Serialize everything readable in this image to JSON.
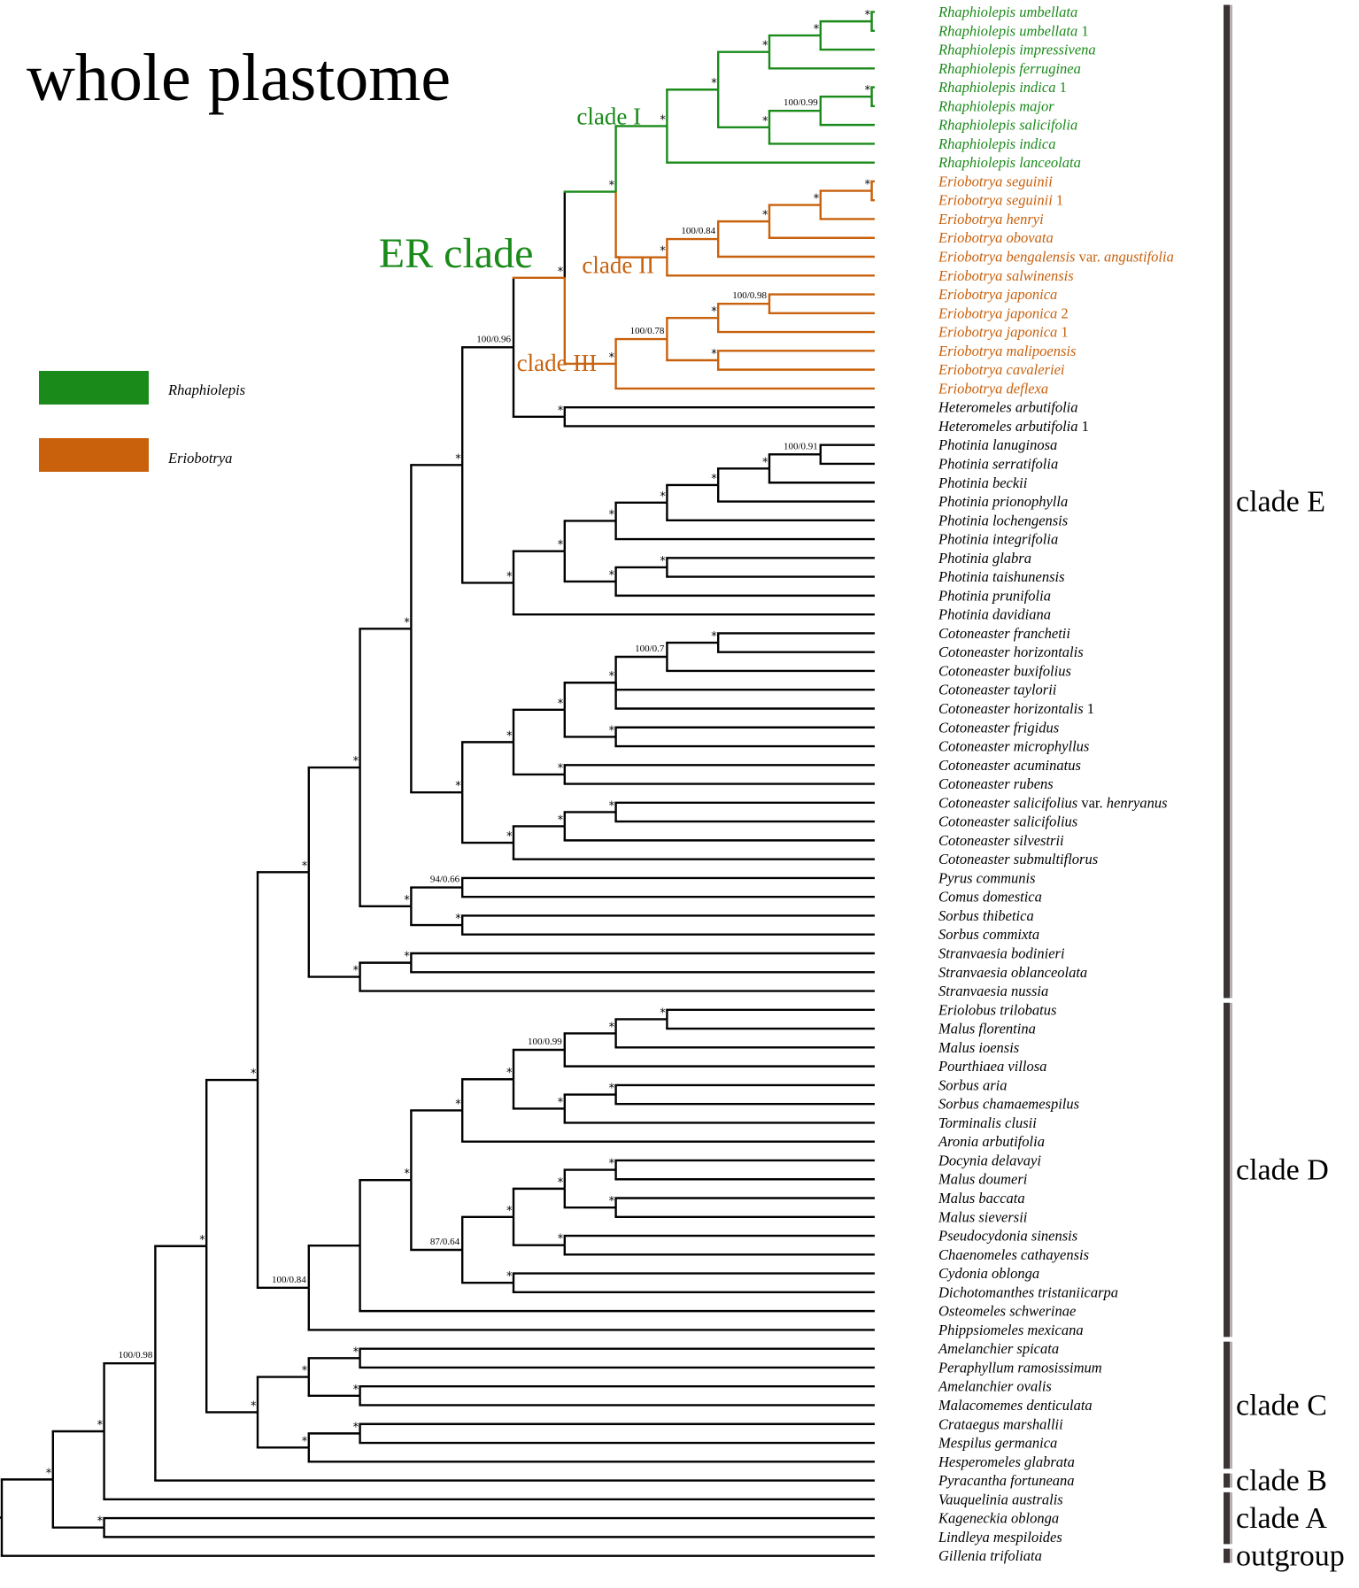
{
  "title": "whole plastome",
  "legend": [
    {
      "label": "Rhaphiolepis",
      "color": "#1a8a1a"
    },
    {
      "label": "Eriobotrya",
      "color": "#c8600c"
    }
  ],
  "colors": {
    "green": "#1a8a1a",
    "orange": "#c8600c",
    "black": "#000000"
  },
  "taxa": [
    {
      "id": "t1",
      "label": "Rhaphiolepis umbellata",
      "col": "g"
    },
    {
      "id": "t2",
      "label": "Rhaphiolepis umbellata",
      "suffix": " 1",
      "col": "g"
    },
    {
      "id": "t3",
      "label": "Rhaphiolepis impressivena",
      "col": "g"
    },
    {
      "id": "t4",
      "label": "Rhaphiolepis ferruginea",
      "col": "g"
    },
    {
      "id": "t5",
      "label": "Rhaphiolepis indica",
      "suffix": " 1",
      "col": "g"
    },
    {
      "id": "t6",
      "label": "Rhaphiolepis major",
      "col": "g"
    },
    {
      "id": "t7",
      "label": "Rhaphiolepis salicifolia",
      "col": "g"
    },
    {
      "id": "t8",
      "label": "Rhaphiolepis indica",
      "col": "g"
    },
    {
      "id": "t9",
      "label": "Rhaphiolepis lanceolata",
      "col": "g"
    },
    {
      "id": "t10",
      "label": "Eriobotrya seguinii",
      "col": "o"
    },
    {
      "id": "t11",
      "label": "Eriobotrya seguinii",
      "suffix": " 1",
      "col": "o"
    },
    {
      "id": "t12",
      "label": "Eriobotrya henryi",
      "col": "o"
    },
    {
      "id": "t13",
      "label": "Eriobotrya obovata",
      "col": "o"
    },
    {
      "id": "t14",
      "label": "Eriobotrya bengalensis",
      "mid": " var. ",
      "tail": "angustifolia",
      "col": "o"
    },
    {
      "id": "t15",
      "label": "Eriobotrya salwinensis",
      "col": "o"
    },
    {
      "id": "t16",
      "label": "Eriobotrya japonica",
      "col": "o"
    },
    {
      "id": "t17",
      "label": "Eriobotrya japonica",
      "suffix": " 2",
      "col": "o"
    },
    {
      "id": "t18",
      "label": "Eriobotrya japonica",
      "suffix": " 1",
      "col": "o"
    },
    {
      "id": "t19",
      "label": "Eriobotrya malipoensis",
      "col": "o"
    },
    {
      "id": "t20",
      "label": "Eriobotrya cavaleriei",
      "col": "o"
    },
    {
      "id": "t21",
      "label": "Eriobotrya deflexa",
      "col": "o"
    },
    {
      "id": "t22",
      "label": "Heteromeles arbutifolia",
      "col": "b"
    },
    {
      "id": "t23",
      "label": "Heteromeles arbutifolia",
      "suffix": " 1",
      "col": "b"
    },
    {
      "id": "t24",
      "label": "Photinia lanuginosa",
      "col": "b"
    },
    {
      "id": "t25",
      "label": "Photinia serratifolia",
      "col": "b"
    },
    {
      "id": "t26",
      "label": "Photinia beckii",
      "col": "b"
    },
    {
      "id": "t27",
      "label": "Photinia prionophylla",
      "col": "b"
    },
    {
      "id": "t28",
      "label": "Photinia lochengensis",
      "col": "b"
    },
    {
      "id": "t29",
      "label": "Photinia integrifolia",
      "col": "b"
    },
    {
      "id": "t30",
      "label": "Photinia glabra",
      "col": "b"
    },
    {
      "id": "t31",
      "label": "Photinia taishunensis",
      "col": "b"
    },
    {
      "id": "t32",
      "label": "Photinia prunifolia",
      "col": "b"
    },
    {
      "id": "t33",
      "label": "Photinia davidiana",
      "col": "b"
    },
    {
      "id": "t34",
      "label": "Cotoneaster franchetii",
      "col": "b"
    },
    {
      "id": "t35",
      "label": "Cotoneaster horizontalis",
      "col": "b"
    },
    {
      "id": "t36",
      "label": "Cotoneaster buxifolius",
      "col": "b"
    },
    {
      "id": "t37",
      "label": "Cotoneaster taylorii",
      "col": "b"
    },
    {
      "id": "t38",
      "label": "Cotoneaster horizontalis",
      "suffix": " 1",
      "col": "b"
    },
    {
      "id": "t39",
      "label": "Cotoneaster frigidus",
      "col": "b"
    },
    {
      "id": "t40",
      "label": "Cotoneaster microphyllus",
      "col": "b"
    },
    {
      "id": "t41",
      "label": "Cotoneaster acuminatus",
      "col": "b"
    },
    {
      "id": "t42",
      "label": "Cotoneaster rubens",
      "col": "b"
    },
    {
      "id": "t43",
      "label": "Cotoneaster salicifolius",
      "mid": " var. ",
      "tail": "henryanus",
      "col": "b"
    },
    {
      "id": "t44",
      "label": "Cotoneaster salicifolius",
      "col": "b"
    },
    {
      "id": "t45",
      "label": "Cotoneaster silvestrii",
      "col": "b"
    },
    {
      "id": "t46",
      "label": "Cotoneaster submultiflorus",
      "col": "b"
    },
    {
      "id": "t47",
      "label": "Pyrus communis",
      "col": "b"
    },
    {
      "id": "t48",
      "label": "Comus domestica",
      "col": "b"
    },
    {
      "id": "t49",
      "label": "Sorbus thibetica",
      "col": "b"
    },
    {
      "id": "t50",
      "label": "Sorbus commixta",
      "col": "b"
    },
    {
      "id": "t51",
      "label": "Stranvaesia bodinieri",
      "col": "b"
    },
    {
      "id": "t52",
      "label": "Stranvaesia oblanceolata",
      "col": "b"
    },
    {
      "id": "t53",
      "label": "Stranvaesia nussia",
      "col": "b"
    },
    {
      "id": "t54",
      "label": "Eriolobus trilobatus",
      "col": "b"
    },
    {
      "id": "t55",
      "label": "Malus florentina",
      "col": "b"
    },
    {
      "id": "t56",
      "label": "Malus ioensis",
      "col": "b"
    },
    {
      "id": "t57",
      "label": "Pourthiaea villosa",
      "col": "b"
    },
    {
      "id": "t58",
      "label": "Sorbus aria",
      "col": "b"
    },
    {
      "id": "t59",
      "label": "Sorbus chamaemespilus",
      "col": "b"
    },
    {
      "id": "t60",
      "label": "Torminalis clusii",
      "col": "b"
    },
    {
      "id": "t61",
      "label": "Aronia arbutifolia",
      "col": "b"
    },
    {
      "id": "t62",
      "label": "Docynia delavayi",
      "col": "b"
    },
    {
      "id": "t63",
      "label": "Malus doumeri",
      "col": "b"
    },
    {
      "id": "t64",
      "label": "Malus baccata",
      "col": "b"
    },
    {
      "id": "t65",
      "label": "Malus sieversii",
      "col": "b"
    },
    {
      "id": "t66",
      "label": "Pseudocydonia sinensis",
      "col": "b"
    },
    {
      "id": "t67",
      "label": "Chaenomeles cathayensis",
      "col": "b"
    },
    {
      "id": "t68",
      "label": "Cydonia oblonga",
      "col": "b"
    },
    {
      "id": "t69",
      "label": "Dichotomanthes tristaniicarpa",
      "col": "b"
    },
    {
      "id": "t70",
      "label": "Osteomeles schwerinae",
      "col": "b"
    },
    {
      "id": "t71",
      "label": "Phippsiomeles mexicana",
      "col": "b"
    },
    {
      "id": "t72",
      "label": "Amelanchier spicata",
      "col": "b"
    },
    {
      "id": "t73",
      "label": "Peraphyllum ramosissimum",
      "col": "b"
    },
    {
      "id": "t74",
      "label": "Amelanchier ovalis",
      "col": "b"
    },
    {
      "id": "t75",
      "label": "Malacomemes denticulata",
      "col": "b"
    },
    {
      "id": "t76",
      "label": "Crataegus marshallii",
      "col": "b"
    },
    {
      "id": "t77",
      "label": "Mespilus germanica",
      "col": "b"
    },
    {
      "id": "t78",
      "label": "Hesperomeles glabrata",
      "col": "b"
    },
    {
      "id": "t79",
      "label": "Pyracantha fortuneana",
      "col": "b"
    },
    {
      "id": "t80",
      "label": "Vauquelinia australis",
      "col": "b"
    },
    {
      "id": "t81",
      "label": "Kageneckia oblonga",
      "col": "b"
    },
    {
      "id": "t82",
      "label": "Lindleya mespiloides",
      "col": "b"
    },
    {
      "id": "t83",
      "label": "Gillenia trifoliata",
      "col": "b"
    }
  ],
  "nodes": [
    {
      "id": "n1",
      "ch": [
        "t1",
        "t2"
      ],
      "s": "*",
      "col": "g"
    },
    {
      "id": "n2",
      "ch": [
        "n1",
        "t3"
      ],
      "s": "*",
      "col": "g"
    },
    {
      "id": "n3",
      "ch": [
        "n2",
        "t4"
      ],
      "s": "*",
      "col": "g"
    },
    {
      "id": "n4",
      "ch": [
        "t5",
        "t6"
      ],
      "s": "*",
      "col": "g"
    },
    {
      "id": "n5",
      "ch": [
        "n4",
        "t7"
      ],
      "s": "100/0.99",
      "col": "g"
    },
    {
      "id": "n6",
      "ch": [
        "n5",
        "t8"
      ],
      "s": "*",
      "col": "g"
    },
    {
      "id": "n7",
      "ch": [
        "n3",
        "n6"
      ],
      "s": "*",
      "col": "g"
    },
    {
      "id": "n8",
      "ch": [
        "n7",
        "t9"
      ],
      "s": "*",
      "col": "g"
    },
    {
      "id": "n9",
      "ch": [
        "t10",
        "t11"
      ],
      "s": "*",
      "col": "o"
    },
    {
      "id": "n10",
      "ch": [
        "n9",
        "t12"
      ],
      "s": "*",
      "col": "o"
    },
    {
      "id": "n11",
      "ch": [
        "n10",
        "t13"
      ],
      "s": "*",
      "col": "o"
    },
    {
      "id": "n12",
      "ch": [
        "n11",
        "t14"
      ],
      "s": "100/0.84",
      "col": "o"
    },
    {
      "id": "n13",
      "ch": [
        "n12",
        "t15"
      ],
      "s": "*",
      "col": "o"
    },
    {
      "id": "n14",
      "ch": [
        "n8",
        "n13"
      ],
      "s": "*",
      "col": "g",
      "child_cols": [
        "g",
        "o"
      ]
    },
    {
      "id": "n15",
      "ch": [
        "t16",
        "t17"
      ],
      "s": "100/0.98",
      "col": "o"
    },
    {
      "id": "n16",
      "ch": [
        "n15",
        "t18"
      ],
      "s": "*",
      "col": "o"
    },
    {
      "id": "n17",
      "ch": [
        "t19",
        "t20"
      ],
      "s": "*",
      "col": "o"
    },
    {
      "id": "n18",
      "ch": [
        "n16",
        "n17"
      ],
      "s": "100/0.78",
      "col": "o"
    },
    {
      "id": "n19",
      "ch": [
        "n18",
        "t21"
      ],
      "s": "*",
      "col": "o"
    },
    {
      "id": "n20",
      "ch": [
        "n14",
        "n19"
      ],
      "s": "*",
      "col": "o",
      "child_cols": [
        "b",
        "o"
      ]
    },
    {
      "id": "n21",
      "ch": [
        "t22",
        "t23"
      ],
      "s": "*",
      "col": "b"
    },
    {
      "id": "n22",
      "ch": [
        "n20",
        "n21"
      ],
      "s": "100/0.96",
      "col": "b"
    },
    {
      "id": "n23",
      "ch": [
        "t24",
        "t25"
      ],
      "s": "100/0.91",
      "col": "b"
    },
    {
      "id": "n24",
      "ch": [
        "n23",
        "t26"
      ],
      "s": "*",
      "col": "b"
    },
    {
      "id": "n25",
      "ch": [
        "n24",
        "t27"
      ],
      "s": "*",
      "col": "b"
    },
    {
      "id": "n26",
      "ch": [
        "n25",
        "t28"
      ],
      "s": "*",
      "col": "b"
    },
    {
      "id": "n27",
      "ch": [
        "n26",
        "t29"
      ],
      "s": "*",
      "col": "b"
    },
    {
      "id": "n28",
      "ch": [
        "t30",
        "t31"
      ],
      "s": "*",
      "col": "b"
    },
    {
      "id": "n29",
      "ch": [
        "n28",
        "t32"
      ],
      "s": "*",
      "col": "b"
    },
    {
      "id": "n30",
      "ch": [
        "n27",
        "n29"
      ],
      "s": "*",
      "col": "b"
    },
    {
      "id": "n31",
      "ch": [
        "n30",
        "t33"
      ],
      "s": "*",
      "col": "b"
    },
    {
      "id": "n32",
      "ch": [
        "n22",
        "n31"
      ],
      "s": "*",
      "col": "b"
    },
    {
      "id": "n33",
      "ch": [
        "t34",
        "t35"
      ],
      "s": "*",
      "col": "b"
    },
    {
      "id": "n34",
      "ch": [
        "n33",
        "t36"
      ],
      "s": "100/0.7",
      "col": "b"
    },
    {
      "id": "n35",
      "ch": [
        "n34",
        "t37",
        "t38"
      ],
      "s": "*",
      "col": "b"
    },
    {
      "id": "n36",
      "ch": [
        "t39",
        "t40"
      ],
      "s": "*",
      "col": "b"
    },
    {
      "id": "n37",
      "ch": [
        "n35",
        "n36"
      ],
      "s": "*",
      "col": "b"
    },
    {
      "id": "n38",
      "ch": [
        "t41",
        "t42"
      ],
      "s": "*",
      "col": "b"
    },
    {
      "id": "n39",
      "ch": [
        "n37",
        "n38"
      ],
      "s": "*",
      "col": "b"
    },
    {
      "id": "n40",
      "ch": [
        "t43",
        "t44"
      ],
      "s": "*",
      "col": "b"
    },
    {
      "id": "n41",
      "ch": [
        "n40",
        "t45"
      ],
      "s": "*",
      "col": "b"
    },
    {
      "id": "n42",
      "ch": [
        "n41",
        "t46"
      ],
      "s": "*",
      "col": "b"
    },
    {
      "id": "n43",
      "ch": [
        "n39",
        "n42"
      ],
      "s": "*",
      "col": "b"
    },
    {
      "id": "n44",
      "ch": [
        "n32",
        "n43"
      ],
      "s": "*",
      "col": "b"
    },
    {
      "id": "n45",
      "ch": [
        "t47",
        "t48"
      ],
      "s": "94/0.66",
      "col": "b"
    },
    {
      "id": "n46",
      "ch": [
        "t49",
        "t50"
      ],
      "s": "*",
      "col": "b"
    },
    {
      "id": "n47",
      "ch": [
        "n45",
        "n46"
      ],
      "s": "*",
      "col": "b"
    },
    {
      "id": "n48",
      "ch": [
        "n44",
        "n47"
      ],
      "s": "*",
      "col": "b"
    },
    {
      "id": "n49",
      "ch": [
        "t51",
        "t52"
      ],
      "s": "*",
      "col": "b"
    },
    {
      "id": "n50",
      "ch": [
        "n49",
        "t53"
      ],
      "s": "*",
      "col": "b"
    },
    {
      "id": "n51",
      "ch": [
        "n48",
        "n50"
      ],
      "s": "*",
      "col": "b"
    },
    {
      "id": "n52",
      "ch": [
        "t54",
        "t55"
      ],
      "s": "*",
      "col": "b"
    },
    {
      "id": "n53",
      "ch": [
        "n52",
        "t56"
      ],
      "s": "*",
      "col": "b"
    },
    {
      "id": "n54",
      "ch": [
        "n53",
        "t57"
      ],
      "s": "100/0.99",
      "col": "b"
    },
    {
      "id": "n55",
      "ch": [
        "t58",
        "t59"
      ],
      "s": "*",
      "col": "b"
    },
    {
      "id": "n56",
      "ch": [
        "n55",
        "t60"
      ],
      "s": "*",
      "col": "b"
    },
    {
      "id": "n57",
      "ch": [
        "n54",
        "n56"
      ],
      "s": "*",
      "col": "b"
    },
    {
      "id": "n58",
      "ch": [
        "n57",
        "t61"
      ],
      "s": "*",
      "col": "b"
    },
    {
      "id": "n59",
      "ch": [
        "t62",
        "t63"
      ],
      "s": "*",
      "col": "b"
    },
    {
      "id": "n60",
      "ch": [
        "t64",
        "t65"
      ],
      "s": "*",
      "col": "b"
    },
    {
      "id": "n61",
      "ch": [
        "n59",
        "n60"
      ],
      "s": "*",
      "col": "b"
    },
    {
      "id": "n62",
      "ch": [
        "t66",
        "t67"
      ],
      "s": "*",
      "col": "b"
    },
    {
      "id": "n63",
      "ch": [
        "n61",
        "n62"
      ],
      "s": "*",
      "col": "b"
    },
    {
      "id": "n64",
      "ch": [
        "t68",
        "t69"
      ],
      "s": "*",
      "col": "b"
    },
    {
      "id": "n65",
      "ch": [
        "n63",
        "n64"
      ],
      "s": "87/0.64",
      "col": "b"
    },
    {
      "id": "n66",
      "ch": [
        "n58",
        "n65"
      ],
      "s": "*",
      "col": "b"
    },
    {
      "id": "n67",
      "ch": [
        "n66",
        "t70"
      ],
      "s": "",
      "col": "b"
    },
    {
      "id": "n68",
      "ch": [
        "n67",
        "t71"
      ],
      "s": "100/0.84",
      "col": "b"
    },
    {
      "id": "n69",
      "ch": [
        "n51",
        "n68"
      ],
      "s": "*",
      "col": "b"
    },
    {
      "id": "n70",
      "ch": [
        "t72",
        "t73"
      ],
      "s": "*",
      "col": "b"
    },
    {
      "id": "n71",
      "ch": [
        "t74",
        "t75"
      ],
      "s": "*",
      "col": "b"
    },
    {
      "id": "n72",
      "ch": [
        "n70",
        "n71"
      ],
      "s": "*",
      "col": "b"
    },
    {
      "id": "n73",
      "ch": [
        "t76",
        "t77"
      ],
      "s": "*",
      "col": "b"
    },
    {
      "id": "n74",
      "ch": [
        "n73",
        "t78"
      ],
      "s": "*",
      "col": "b"
    },
    {
      "id": "n75",
      "ch": [
        "n72",
        "n74"
      ],
      "s": "*",
      "col": "b"
    },
    {
      "id": "n76",
      "ch": [
        "n69",
        "n75"
      ],
      "s": "*",
      "col": "b"
    },
    {
      "id": "n77",
      "ch": [
        "n76",
        "t79"
      ],
      "s": "100/0.98",
      "col": "b"
    },
    {
      "id": "n78",
      "ch": [
        "n77",
        "t80"
      ],
      "s": "*",
      "col": "b"
    },
    {
      "id": "n79",
      "ch": [
        "t81",
        "t82"
      ],
      "s": "*",
      "col": "b"
    },
    {
      "id": "n80",
      "ch": [
        "n78",
        "n79"
      ],
      "s": "*",
      "col": "b"
    },
    {
      "id": "n81",
      "ch": [
        "n80",
        "t83"
      ],
      "s": "*",
      "col": "b"
    }
  ],
  "clade_labels": [
    {
      "text": "clade I",
      "node": "n8",
      "col": "g"
    },
    {
      "text": "clade II",
      "node": "n13",
      "col": "o"
    },
    {
      "text": "clade III",
      "node": "n19",
      "col": "o"
    },
    {
      "text": "ER clade",
      "node": "n20",
      "col": "g"
    }
  ],
  "groups": [
    {
      "label": "clade E",
      "from": "t1",
      "to": "t53"
    },
    {
      "label": "clade D",
      "from": "t54",
      "to": "t71"
    },
    {
      "label": "clade C",
      "from": "t72",
      "to": "t78"
    },
    {
      "label": "clade B",
      "from": "t79",
      "to": "t79"
    },
    {
      "label": "clade A",
      "from": "t80",
      "to": "t82"
    },
    {
      "label": "outgroup",
      "from": "t83",
      "to": "t83"
    }
  ]
}
